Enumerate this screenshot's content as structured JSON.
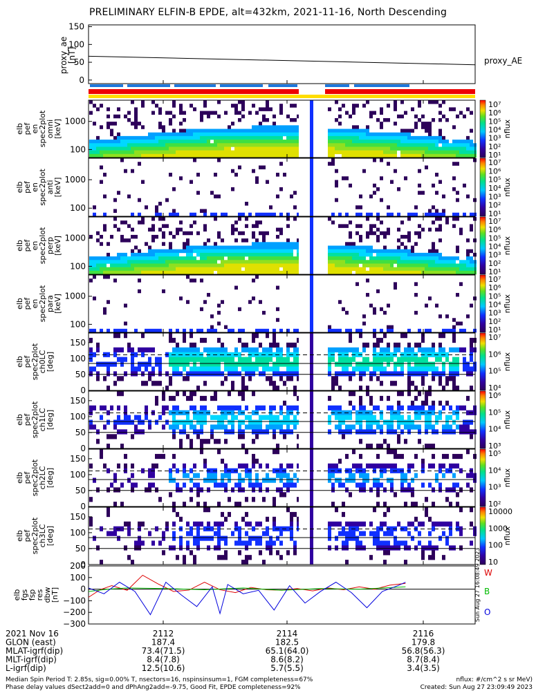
{
  "title": "PRELIMINARY ELFIN-B EPDE, alt=432km, 2021-11-16, North Descending",
  "chart_data": {
    "type": "heatmap",
    "title": "PRELIMINARY ELFIN-B EPDE, alt=432km, 2021-11-16, North Descending",
    "x_time_ticks": [
      "2112",
      "2114",
      "2116"
    ],
    "x_time_minutes": [
      21.2,
      21.4,
      21.6
    ],
    "proxy_panel": {
      "ylabel_lines": [
        "proxy_ae",
        "[nT]"
      ],
      "yticks": [
        0,
        50,
        100,
        150
      ],
      "ylim": [
        -10,
        155
      ],
      "series": [
        {
          "name": "proxy_AE",
          "x": [
            0,
            1
          ],
          "values": [
            67,
            43
          ]
        }
      ]
    },
    "spectrogram_panels": [
      {
        "ylabel_lines": [
          "elb",
          "pef",
          "en",
          "spec2plot",
          "omni",
          "[keV]"
        ],
        "yticks": [
          "100",
          "1000"
        ],
        "cbar_ticks": [
          "10⁷",
          "10⁶",
          "10⁵",
          "10⁴",
          "10³",
          "10²",
          "10¹"
        ],
        "cbar_label": "nflux"
      },
      {
        "ylabel_lines": [
          "elb",
          "pef",
          "en",
          "spec2plot",
          "anti",
          "[keV]"
        ],
        "yticks": [
          "100",
          "1000"
        ],
        "cbar_ticks": [
          "10⁷",
          "10⁶",
          "10⁵",
          "10⁴",
          "10³",
          "10²",
          "10¹"
        ],
        "cbar_label": "nflux"
      },
      {
        "ylabel_lines": [
          "elb",
          "pef",
          "en",
          "spec2plot",
          "perp",
          "[keV]"
        ],
        "yticks": [
          "100",
          "1000"
        ],
        "cbar_ticks": [
          "10⁷",
          "10⁶",
          "10⁵",
          "10⁴",
          "10³",
          "10²",
          "10¹"
        ],
        "cbar_label": "nflux"
      },
      {
        "ylabel_lines": [
          "elb",
          "pef",
          "en",
          "spec2plot",
          "para",
          "[keV]"
        ],
        "yticks": [
          "100",
          "1000"
        ],
        "cbar_ticks": [
          "10⁷",
          "10⁶",
          "10⁵",
          "10⁴",
          "10³",
          "10²",
          "10¹"
        ],
        "cbar_label": "nflux"
      }
    ],
    "pitch_panels": [
      {
        "ylabel_lines": [
          "elb",
          "pef",
          "spec2plot",
          "ch0LC",
          "[deg]"
        ],
        "yticks": [
          "0",
          "50",
          "100",
          "150"
        ],
        "cbar_ticks": [
          "10⁷",
          "10⁶",
          "10⁵",
          "10⁴"
        ],
        "cbar_label": "nflux"
      },
      {
        "ylabel_lines": [
          "elb",
          "pef",
          "spec2plot",
          "ch1LC",
          "[deg]"
        ],
        "yticks": [
          "0",
          "50",
          "100",
          "150"
        ],
        "cbar_ticks": [
          "10⁶",
          "10⁵",
          "10⁴",
          "10³"
        ],
        "cbar_label": "nflux"
      },
      {
        "ylabel_lines": [
          "elb",
          "pef",
          "spec2plot",
          "ch2LC",
          "[deg]"
        ],
        "yticks": [
          "0",
          "50",
          "100",
          "150"
        ],
        "cbar_ticks": [
          "10⁵",
          "10⁴",
          "10³",
          "10²"
        ],
        "cbar_label": "nflux"
      },
      {
        "ylabel_lines": [
          "elb",
          "pef",
          "spec2plot",
          "ch3LC",
          "[deg]"
        ],
        "yticks": [
          "0",
          "50",
          "100",
          "150"
        ],
        "cbar_ticks": [
          "10000",
          "1000",
          "100",
          "10"
        ],
        "cbar_label": "nflux"
      }
    ],
    "bfield_panel": {
      "ylabel_lines": [
        "elb",
        "fgs",
        "fsp",
        "res",
        "dbw",
        "[nT]"
      ],
      "yticks": [
        "200",
        "100",
        "0",
        "−100",
        "−200",
        "−300"
      ],
      "ylim": [
        -300,
        200
      ],
      "legend": [
        "W",
        "B",
        "O"
      ],
      "colors": {
        "W": "#dd0000",
        "B": "#00bb00",
        "O": "#0000dd"
      },
      "series": [
        {
          "name": "W",
          "x": [
            0,
            0.03,
            0.06,
            0.1,
            0.14,
            0.18,
            0.22,
            0.26,
            0.3,
            0.34,
            0.38,
            0.42,
            0.46,
            0.5,
            0.54,
            0.58,
            0.62,
            0.66,
            0.7,
            0.74,
            0.78,
            0.82
          ],
          "values": [
            -70,
            -5,
            30,
            -10,
            120,
            45,
            -20,
            -8,
            60,
            -5,
            -30,
            15,
            -5,
            -10,
            5,
            -15,
            10,
            -5,
            20,
            0,
            35,
            50
          ]
        },
        {
          "name": "B",
          "x": [
            0,
            0.05,
            0.1,
            0.2,
            0.3,
            0.4,
            0.5,
            0.6,
            0.7,
            0.82
          ],
          "values": [
            -20,
            0,
            10,
            5,
            -5,
            10,
            -10,
            5,
            0,
            20
          ]
        },
        {
          "name": "O",
          "x": [
            0,
            0.04,
            0.08,
            0.12,
            0.16,
            0.2,
            0.24,
            0.28,
            0.32,
            0.34,
            0.36,
            0.4,
            0.44,
            0.48,
            0.52,
            0.56,
            0.6,
            0.64,
            0.68,
            0.72,
            0.76,
            0.8,
            0.82
          ],
          "values": [
            10,
            -40,
            60,
            -20,
            -220,
            60,
            -50,
            -150,
            20,
            -210,
            40,
            -40,
            -10,
            -180,
            30,
            -120,
            -20,
            60,
            -30,
            -160,
            -20,
            30,
            60
          ]
        }
      ]
    }
  },
  "bottom_labels": {
    "rows": [
      {
        "label": "2021 Nov 16",
        "values": [
          "2112",
          "2114",
          "2116"
        ]
      },
      {
        "label": "GLON (east)",
        "values": [
          "187.4",
          "182.5",
          "179.8"
        ]
      },
      {
        "label": "MLAT-igrf(dip)",
        "values": [
          "73.4(71.5)",
          "65.1(64.0)",
          "56.8(56.3)"
        ]
      },
      {
        "label": "MLT-igrf(dip)",
        "values": [
          "8.4(7.8)",
          "8.6(8.2)",
          "8.7(8.4)"
        ]
      },
      {
        "label": "L-igrf(dip)",
        "values": [
          "12.5(10.6)",
          "5.7(5.5)",
          "3.4(3.5)"
        ]
      }
    ]
  },
  "footer": {
    "line1_left": "Median Spin Period T: 2.85s, sig=0.00% T, nsectors=16, nspinsinsum=1, FGM completeness=67%",
    "line2_left": "Phase delay values dSect2add=0 and dPhAng2add=-9.75, Good Fit, EPDE completeness=92%",
    "line1_right": "nflux: #/cm^2 s sr MeV)",
    "line2_right": "Created: Sun Aug 27 23:09:49 2023"
  },
  "side_stamp": "Sun Aug 27 16:08:49 2023",
  "colors": {
    "accent_red": "#ee0000",
    "accent_yellow": "#ffdd00",
    "accent_blue": "#1e78dc"
  }
}
